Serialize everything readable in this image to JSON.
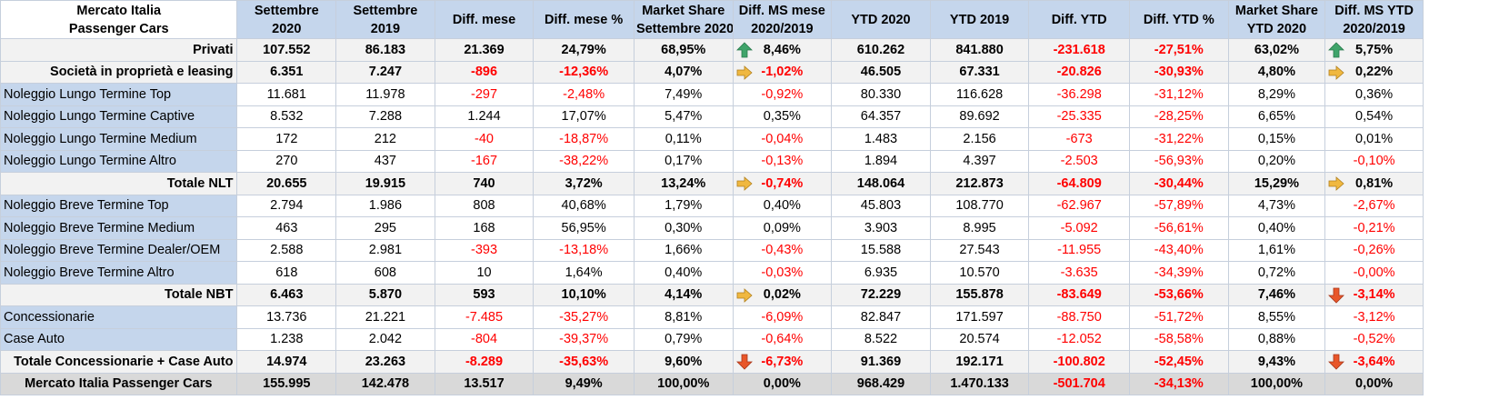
{
  "header": {
    "title_line1": "Mercato Italia",
    "title_line2": "Passenger Cars",
    "columns": [
      [
        "Settembre",
        "2020"
      ],
      [
        "Settembre",
        "2019"
      ],
      [
        "Diff. mese",
        ""
      ],
      [
        "Diff. mese %",
        ""
      ],
      [
        "Market Share",
        "Settembre 2020"
      ],
      [
        "Diff. MS mese",
        "2020/2019"
      ],
      [
        "YTD 2020",
        ""
      ],
      [
        "YTD 2019",
        ""
      ],
      [
        "Diff. YTD",
        ""
      ],
      [
        "Diff. YTD %",
        ""
      ],
      [
        "Market Share",
        "YTD 2020"
      ],
      [
        "Diff. MS YTD",
        "2020/2019"
      ]
    ]
  },
  "colors": {
    "header_bg": "#c5d6ec",
    "negative": "#ff0000",
    "total_bg": "#d9d9d9",
    "bold_row_bg": "#f2f2f2",
    "arrow_up": "#3fa46a",
    "arrow_side": "#f0b840",
    "arrow_down": "#e8562a"
  },
  "rows": [
    {
      "label": "Privati",
      "style": "bold",
      "arrow_ms": "up-arrow-icon",
      "arrow_ytd": "up-arrow-icon",
      "cells": [
        "107.552",
        "86.183",
        "21.369",
        "24,79%",
        "68,95%",
        "8,46%",
        "610.262",
        "841.880",
        "-231.618",
        "-27,51%",
        "63,02%",
        "5,75%"
      ]
    },
    {
      "label": "Società in proprietà e leasing",
      "style": "bold",
      "arrow_ms": "right-arrow-icon",
      "arrow_ytd": "right-arrow-icon",
      "cells": [
        "6.351",
        "7.247",
        "-896",
        "-12,36%",
        "4,07%",
        "-1,02%",
        "46.505",
        "67.331",
        "-20.826",
        "-30,93%",
        "4,80%",
        "0,22%"
      ]
    },
    {
      "label": "Noleggio Lungo Termine Top",
      "style": "normal",
      "cells": [
        "11.681",
        "11.978",
        "-297",
        "-2,48%",
        "7,49%",
        "-0,92%",
        "80.330",
        "116.628",
        "-36.298",
        "-31,12%",
        "8,29%",
        "0,36%"
      ]
    },
    {
      "label": "Noleggio Lungo Termine Captive",
      "style": "normal",
      "cells": [
        "8.532",
        "7.288",
        "1.244",
        "17,07%",
        "5,47%",
        "0,35%",
        "64.357",
        "89.692",
        "-25.335",
        "-28,25%",
        "6,65%",
        "0,54%"
      ]
    },
    {
      "label": "Noleggio Lungo Termine Medium",
      "style": "normal",
      "cells": [
        "172",
        "212",
        "-40",
        "-18,87%",
        "0,11%",
        "-0,04%",
        "1.483",
        "2.156",
        "-673",
        "-31,22%",
        "0,15%",
        "0,01%"
      ]
    },
    {
      "label": "Noleggio Lungo Termine Altro",
      "style": "normal",
      "cells": [
        "270",
        "437",
        "-167",
        "-38,22%",
        "0,17%",
        "-0,13%",
        "1.894",
        "4.397",
        "-2.503",
        "-56,93%",
        "0,20%",
        "-0,10%"
      ]
    },
    {
      "label": "Totale NLT",
      "style": "bold",
      "arrow_ms": "right-arrow-icon",
      "arrow_ytd": "right-arrow-icon",
      "cells": [
        "20.655",
        "19.915",
        "740",
        "3,72%",
        "13,24%",
        "-0,74%",
        "148.064",
        "212.873",
        "-64.809",
        "-30,44%",
        "15,29%",
        "0,81%"
      ]
    },
    {
      "label": "Noleggio Breve Termine Top",
      "style": "normal",
      "cells": [
        "2.794",
        "1.986",
        "808",
        "40,68%",
        "1,79%",
        "0,40%",
        "45.803",
        "108.770",
        "-62.967",
        "-57,89%",
        "4,73%",
        "-2,67%"
      ]
    },
    {
      "label": "Noleggio Breve Termine Medium",
      "style": "normal",
      "cells": [
        "463",
        "295",
        "168",
        "56,95%",
        "0,30%",
        "0,09%",
        "3.903",
        "8.995",
        "-5.092",
        "-56,61%",
        "0,40%",
        "-0,21%"
      ]
    },
    {
      "label": "Noleggio Breve Termine Dealer/OEM",
      "style": "normal",
      "cells": [
        "2.588",
        "2.981",
        "-393",
        "-13,18%",
        "1,66%",
        "-0,43%",
        "15.588",
        "27.543",
        "-11.955",
        "-43,40%",
        "1,61%",
        "-0,26%"
      ]
    },
    {
      "label": "Noleggio Breve Termine Altro",
      "style": "normal",
      "cells": [
        "618",
        "608",
        "10",
        "1,64%",
        "0,40%",
        "-0,03%",
        "6.935",
        "10.570",
        "-3.635",
        "-34,39%",
        "0,72%",
        "-0,00%"
      ]
    },
    {
      "label": "Totale NBT",
      "style": "bold",
      "arrow_ms": "right-arrow-icon",
      "arrow_ytd": "down-arrow-icon",
      "cells": [
        "6.463",
        "5.870",
        "593",
        "10,10%",
        "4,14%",
        "0,02%",
        "72.229",
        "155.878",
        "-83.649",
        "-53,66%",
        "7,46%",
        "-3,14%"
      ]
    },
    {
      "label": "Concessionarie",
      "style": "normal",
      "cells": [
        "13.736",
        "21.221",
        "-7.485",
        "-35,27%",
        "8,81%",
        "-6,09%",
        "82.847",
        "171.597",
        "-88.750",
        "-51,72%",
        "8,55%",
        "-3,12%"
      ]
    },
    {
      "label": "Case Auto",
      "style": "normal",
      "cells": [
        "1.238",
        "2.042",
        "-804",
        "-39,37%",
        "0,79%",
        "-0,64%",
        "8.522",
        "20.574",
        "-12.052",
        "-58,58%",
        "0,88%",
        "-0,52%"
      ]
    },
    {
      "label": "Totale Concessionarie + Case Auto",
      "style": "bold",
      "arrow_ms": "down-arrow-icon",
      "arrow_ytd": "down-arrow-icon",
      "cells": [
        "14.974",
        "23.263",
        "-8.289",
        "-35,63%",
        "9,60%",
        "-6,73%",
        "91.369",
        "192.171",
        "-100.802",
        "-52,45%",
        "9,43%",
        "-3,64%"
      ]
    },
    {
      "label": "Mercato Italia Passenger Cars",
      "style": "total",
      "cells": [
        "155.995",
        "142.478",
        "13.517",
        "9,49%",
        "100,00%",
        "0,00%",
        "968.429",
        "1.470.133",
        "-501.704",
        "-34,13%",
        "100,00%",
        "0,00%"
      ]
    }
  ]
}
